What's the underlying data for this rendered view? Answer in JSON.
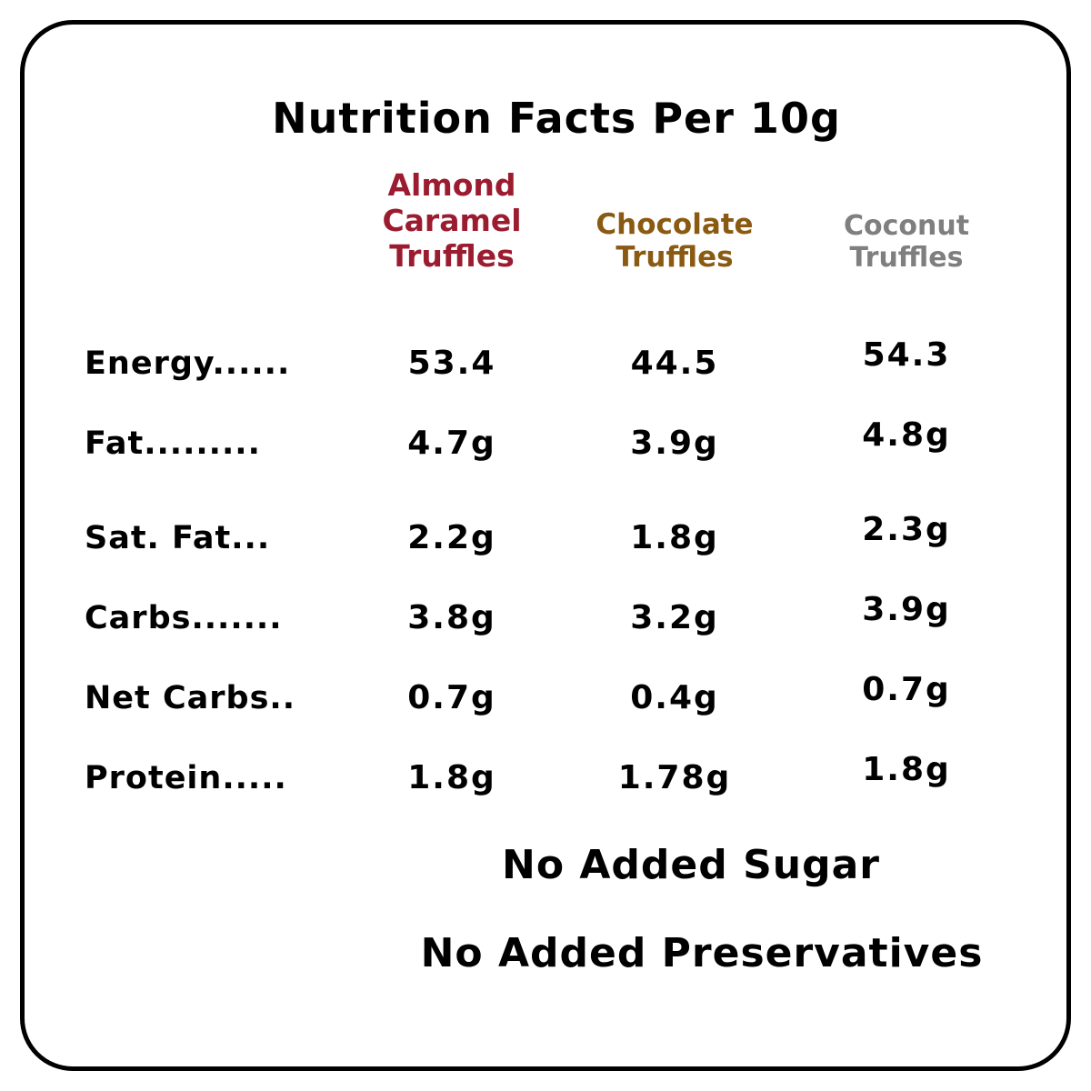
{
  "title": "Nutrition Facts Per 10g",
  "columns": [
    {
      "name": "Almond Caramel Truffles",
      "line1": "Almond",
      "line2": "Caramel",
      "line3": "Truffles",
      "color": "#9b1b2f"
    },
    {
      "name": "Chocolate Truffles",
      "line1": "Chocolate",
      "line2": "Truffles",
      "color": "#8a5a12"
    },
    {
      "name": "Coconut Truffles",
      "line1": "Coconut",
      "line2": "Truffles",
      "color": "#7f7f7f"
    }
  ],
  "rows": [
    {
      "label": "Energy......",
      "almond": "53.4",
      "chocolate": "44.5",
      "coconut": "54.3"
    },
    {
      "label": "Fat.........",
      "almond": "4.7g",
      "chocolate": "3.9g",
      "coconut": "4.8g"
    },
    {
      "label": "Sat. Fat...",
      "almond": "2.2g",
      "chocolate": "1.8g",
      "coconut": "2.3g"
    },
    {
      "label": "Carbs.......",
      "almond": "3.8g",
      "chocolate": "3.2g",
      "coconut": "3.9g"
    },
    {
      "label": "Net Carbs..",
      "almond": "0.7g",
      "chocolate": "0.4g",
      "coconut": "0.7g"
    },
    {
      "label": "Protein.....",
      "almond": "1.8g",
      "chocolate": "1.78g",
      "coconut": "1.8g"
    }
  ],
  "footnotes": {
    "line1": "No Added Sugar",
    "line2": "No Added Preservatives"
  },
  "chart_data": {
    "type": "table",
    "title": "Nutrition Facts Per 10g",
    "columns": [
      "Almond Caramel Truffles",
      "Chocolate Truffles",
      "Coconut Truffles"
    ],
    "row_labels": [
      "Energy",
      "Fat",
      "Sat. Fat",
      "Carbs",
      "Net Carbs",
      "Protein"
    ],
    "values": [
      [
        "53.4",
        "44.5",
        "54.3"
      ],
      [
        "4.7g",
        "3.9g",
        "4.8g"
      ],
      [
        "2.2g",
        "1.8g",
        "2.3g"
      ],
      [
        "3.8g",
        "3.2g",
        "3.9g"
      ],
      [
        "0.7g",
        "0.4g",
        "0.7g"
      ],
      [
        "1.8g",
        "1.78g",
        "1.8g"
      ]
    ]
  }
}
